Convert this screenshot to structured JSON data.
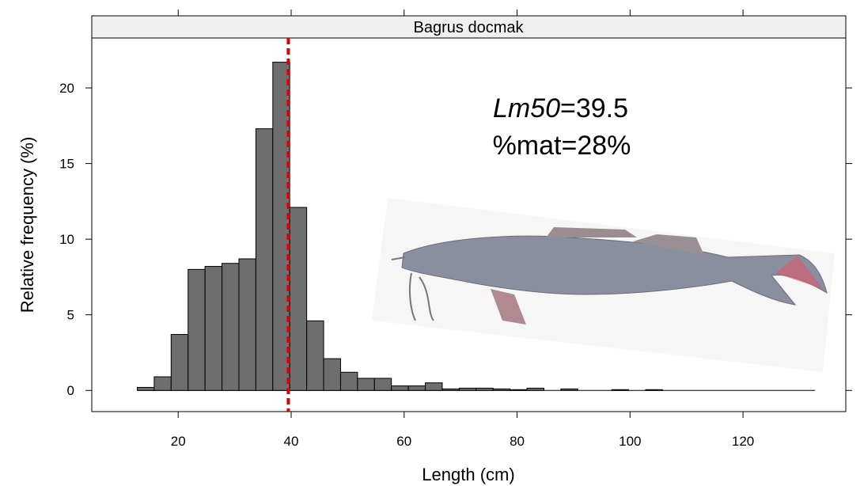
{
  "chart_data": {
    "type": "histogram",
    "strip_title": "Bagrus docmak",
    "xlabel": "Length (cm)",
    "ylabel": "Relative frequency (%)",
    "annotation_name": "Lm50",
    "annotation_value": "=39.5",
    "annotation_mat": "%mat=28%",
    "vline": 39.5,
    "vline_color": "#e00000",
    "color": "#6e6e6e",
    "bins": [
      12.75,
      15.75,
      18.75,
      21.75,
      24.75,
      27.75,
      30.75,
      33.75,
      36.75,
      39.75,
      42.75,
      45.75,
      48.75,
      51.75,
      54.75,
      57.75,
      60.75,
      63.75,
      66.75,
      69.75,
      72.75,
      75.75,
      78.75,
      81.75,
      84.75,
      87.75,
      90.75,
      93.75,
      96.75,
      99.75,
      102.75,
      105.75,
      108.75,
      111.75,
      114.75,
      117.75,
      120.75,
      123.75,
      126.75,
      129.75,
      132.75
    ],
    "values": [
      0.2,
      0.9,
      3.7,
      8.0,
      8.2,
      8.4,
      8.7,
      17.3,
      21.7,
      12.1,
      4.6,
      2.1,
      1.2,
      0.8,
      0.8,
      0.3,
      0.3,
      0.5,
      0.1,
      0.15,
      0.15,
      0.1,
      0.05,
      0.15,
      0,
      0.1,
      0,
      0,
      0.05,
      0,
      0.05,
      0,
      0,
      0,
      0,
      0,
      0,
      0,
      0,
      0
    ],
    "xlim": [
      4.7,
      138.2
    ],
    "ylim": [
      -1.4,
      23.3
    ],
    "xticks": [
      20,
      40,
      60,
      80,
      100,
      120
    ],
    "yticks": [
      0,
      5,
      10,
      15,
      20
    ]
  }
}
